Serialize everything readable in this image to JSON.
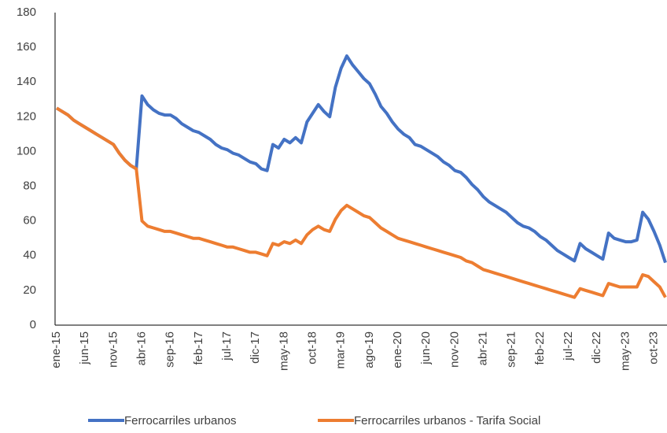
{
  "chart_data": {
    "type": "line",
    "categories": [
      "ene-15",
      null,
      null,
      null,
      null,
      "jun-15",
      null,
      null,
      null,
      null,
      "nov-15",
      null,
      null,
      null,
      null,
      "abr-16",
      null,
      null,
      null,
      null,
      "sep-16",
      null,
      null,
      null,
      null,
      "feb-17",
      null,
      null,
      null,
      null,
      "jul-17",
      null,
      null,
      null,
      null,
      "dic-17",
      null,
      null,
      null,
      null,
      "may-18",
      null,
      null,
      null,
      null,
      "oct-18",
      null,
      null,
      null,
      null,
      "mar-19",
      null,
      null,
      null,
      null,
      "ago-19",
      null,
      null,
      null,
      null,
      "ene-20",
      null,
      null,
      null,
      null,
      "jun-20",
      null,
      null,
      null,
      null,
      "nov-20",
      null,
      null,
      null,
      null,
      "abr-21",
      null,
      null,
      null,
      null,
      "sep-21",
      null,
      null,
      null,
      null,
      "feb-22",
      null,
      null,
      null,
      null,
      "jul-22",
      null,
      null,
      null,
      null,
      "dic-22",
      null,
      null,
      null,
      null,
      "may-23",
      null,
      null,
      null,
      null,
      "oct-23",
      null,
      null
    ],
    "series": [
      {
        "name": "Ferrocarriles urbanos",
        "color": "#4472c4",
        "values": [
          125,
          123,
          121,
          118,
          116,
          114,
          112,
          110,
          108,
          106,
          104,
          99,
          95,
          92,
          90,
          132,
          127,
          124,
          122,
          121,
          121,
          119,
          116,
          114,
          112,
          111,
          109,
          107,
          104,
          102,
          101,
          99,
          98,
          96,
          94,
          93,
          90,
          89,
          104,
          102,
          107,
          105,
          108,
          105,
          117,
          122,
          127,
          123,
          120,
          137,
          148,
          155,
          150,
          146,
          142,
          139,
          133,
          126,
          122,
          117,
          113,
          110,
          108,
          104,
          103,
          101,
          99,
          97,
          94,
          92,
          89,
          88,
          85,
          81,
          78,
          74,
          71,
          69,
          67,
          65,
          62,
          59,
          57,
          56,
          54,
          51,
          49,
          46,
          43,
          41,
          39,
          37,
          47,
          44,
          42,
          40,
          38,
          53,
          50,
          49,
          48,
          48,
          49,
          65,
          61,
          54,
          46,
          36
        ]
      },
      {
        "name": "Ferrocarriles urbanos - Tarifa Social",
        "color": "#ed7d31",
        "values": [
          125,
          123,
          121,
          118,
          116,
          114,
          112,
          110,
          108,
          106,
          104,
          99,
          95,
          92,
          90,
          60,
          57,
          56,
          55,
          54,
          54,
          53,
          52,
          51,
          50,
          50,
          49,
          48,
          47,
          46,
          45,
          45,
          44,
          43,
          42,
          42,
          41,
          40,
          47,
          46,
          48,
          47,
          49,
          47,
          52,
          55,
          57,
          55,
          54,
          61,
          66,
          69,
          67,
          65,
          63,
          62,
          59,
          56,
          54,
          52,
          50,
          49,
          48,
          47,
          46,
          45,
          44,
          43,
          42,
          41,
          40,
          39,
          37,
          36,
          34,
          32,
          31,
          30,
          29,
          28,
          27,
          26,
          25,
          24,
          23,
          22,
          21,
          20,
          19,
          18,
          17,
          16,
          21,
          20,
          19,
          18,
          17,
          24,
          23,
          22,
          22,
          22,
          22,
          29,
          28,
          25,
          22,
          16
        ]
      }
    ],
    "ylim": [
      0,
      180
    ],
    "yticks": [
      0,
      20,
      40,
      60,
      80,
      100,
      120,
      140,
      160,
      180
    ],
    "grid": false,
    "legend": "bottom"
  }
}
